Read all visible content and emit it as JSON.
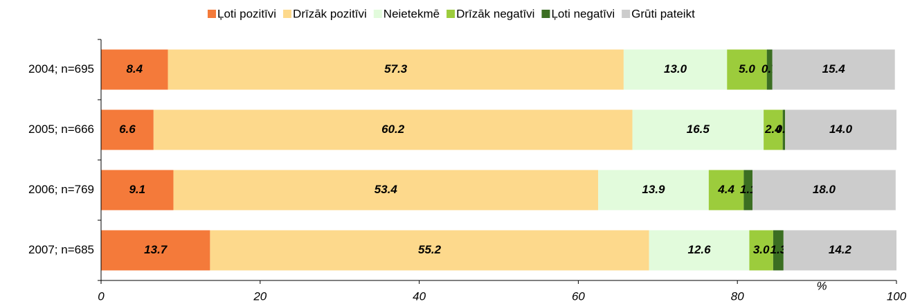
{
  "chart_data": {
    "type": "stacked_bar_horizontal",
    "categories": [
      "2004; n=695",
      "2005; n=666",
      "2006; n=769",
      "2007; n=685"
    ],
    "series": [
      {
        "name": "Ļoti pozitīvi",
        "color": "#f47a3a",
        "values": [
          8.4,
          6.6,
          9.1,
          13.7
        ],
        "value_labels": [
          "8.4",
          "6.6",
          "9.1",
          "13.7"
        ]
      },
      {
        "name": "Drīzāk pozitīvi",
        "color": "#fdd98c",
        "values": [
          57.3,
          60.2,
          53.4,
          55.2
        ],
        "value_labels": [
          "57.3",
          "60.2",
          "53.4",
          "55.2"
        ]
      },
      {
        "name": "Neietekmē",
        "color": "#e2fbdc",
        "values": [
          13.0,
          16.5,
          13.9,
          12.6
        ],
        "value_labels": [
          "13.0",
          "16.5",
          "13.9",
          "12.6"
        ]
      },
      {
        "name": "Drīzāk negatīvi",
        "color": "#9ccc3c",
        "values": [
          5.0,
          2.4,
          4.4,
          3.0
        ],
        "value_labels": [
          "5.0",
          "2.4",
          "4.4",
          "3.0"
        ]
      },
      {
        "name": "Ļoti negatīvi",
        "color": "#3b6e22",
        "values": [
          0.7,
          0.3,
          1.1,
          1.3
        ],
        "value_labels": [
          "0.7",
          "0.3",
          "1.1",
          "1.3"
        ]
      },
      {
        "name": "Grūti pateikt",
        "color": "#cccccc",
        "values": [
          15.4,
          14.0,
          18.0,
          14.2
        ],
        "value_labels": [
          "15.4",
          "14.0",
          "18.0",
          "14.2"
        ]
      }
    ],
    "xlabel": "%",
    "xlim": [
      0,
      100
    ],
    "xticks": [
      0,
      20,
      40,
      60,
      80,
      100
    ],
    "legend": "top"
  }
}
